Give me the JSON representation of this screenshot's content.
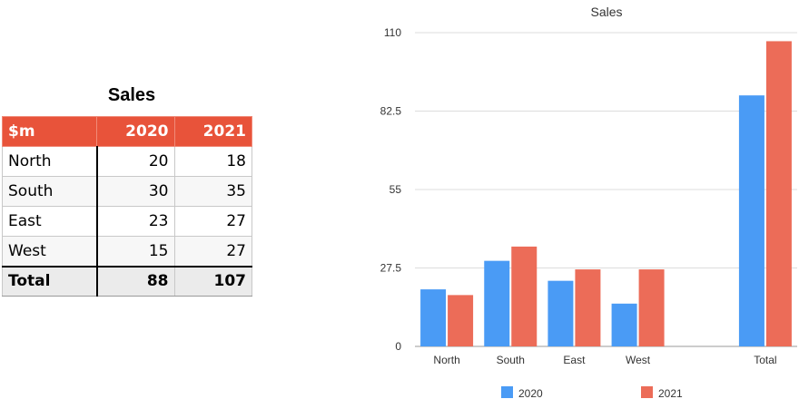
{
  "table": {
    "title": "Sales",
    "headers": [
      "$m",
      "2020",
      "2021"
    ],
    "rows": [
      [
        "North",
        "20",
        "18"
      ],
      [
        "South",
        "30",
        "35"
      ],
      [
        "East",
        "23",
        "27"
      ],
      [
        "West",
        "15",
        "27"
      ]
    ],
    "total": [
      "Total",
      "88",
      "107"
    ]
  },
  "colors": {
    "header_bg": "#e8533a",
    "series_2020": "#4a9bf5",
    "series_2021": "#ec6c58"
  },
  "chart_data": {
    "type": "bar",
    "title": "Sales",
    "categories": [
      "North",
      "South",
      "East",
      "West",
      "",
      "Total"
    ],
    "series": [
      {
        "name": "2020",
        "color": "#4a9bf5",
        "values": [
          20,
          30,
          23,
          15,
          null,
          88
        ]
      },
      {
        "name": "2021",
        "color": "#ec6c58",
        "values": [
          18,
          35,
          27,
          27,
          null,
          107
        ]
      }
    ],
    "yticks": [
      "0",
      "27.5",
      "55",
      "82.5",
      "110"
    ],
    "ylim": [
      0,
      110
    ],
    "grid": true,
    "legend": "bottom",
    "xlabel": "",
    "ylabel": ""
  }
}
